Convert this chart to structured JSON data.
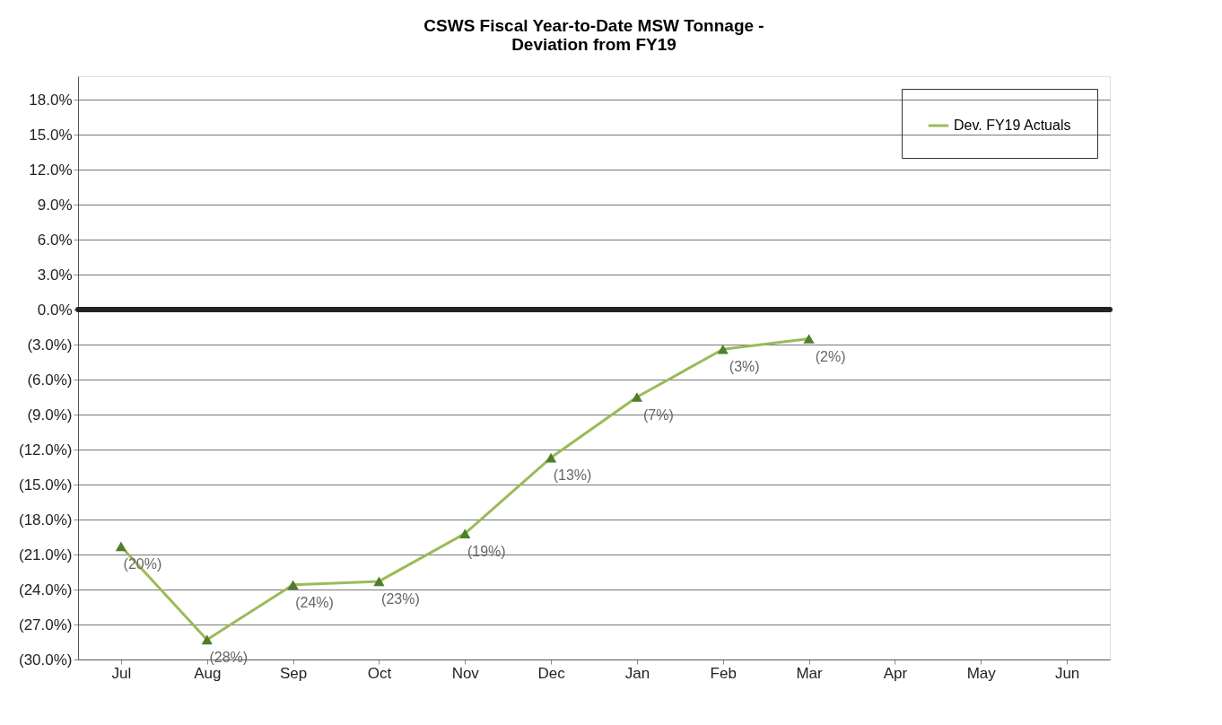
{
  "chart_data": {
    "type": "line",
    "title": "CSWS Fiscal Year-to-Date MSW Tonnage -\nDeviation from FY19",
    "categories": [
      "Jul",
      "Aug",
      "Sep",
      "Oct",
      "Nov",
      "Dec",
      "Jan",
      "Feb",
      "Mar",
      "Apr",
      "May",
      "Jun"
    ],
    "series": [
      {
        "name": "Dev. FY19 Actuals",
        "color": "#9bbb59",
        "values": [
          -20.3,
          -28.3,
          -23.6,
          -23.3,
          -19.2,
          -12.7,
          -7.5,
          -3.4,
          -2.5,
          null,
          null,
          null
        ],
        "value_labels": [
          "(20%)",
          "(28%)",
          "(24%)",
          "(23%)",
          "(19%)",
          "(13%)",
          "(7%)",
          "(3%)",
          "(2%)",
          null,
          null,
          null
        ]
      }
    ],
    "ylim": [
      -30,
      20
    ],
    "yticks": [
      {
        "value": -30,
        "label": "(30.0%)"
      },
      {
        "value": -27,
        "label": "(27.0%)"
      },
      {
        "value": -24,
        "label": "(24.0%)"
      },
      {
        "value": -21,
        "label": "(21.0%)"
      },
      {
        "value": -18,
        "label": "(18.0%)"
      },
      {
        "value": -15,
        "label": "(15.0%)"
      },
      {
        "value": -12,
        "label": "(12.0%)"
      },
      {
        "value": -9,
        "label": "(9.0%)"
      },
      {
        "value": -6,
        "label": "(6.0%)"
      },
      {
        "value": -3,
        "label": "(3.0%)"
      },
      {
        "value": 0,
        "label": "0.0%"
      },
      {
        "value": 3,
        "label": "3.0%"
      },
      {
        "value": 6,
        "label": "6.0%"
      },
      {
        "value": 9,
        "label": "9.0%"
      },
      {
        "value": 12,
        "label": "12.0%"
      },
      {
        "value": 15,
        "label": "15.0%"
      },
      {
        "value": 18,
        "label": "18.0%"
      }
    ],
    "ref_lines": [
      {
        "axis": "y",
        "value": 0,
        "color": "#222222"
      }
    ],
    "grid": "y",
    "legend": "top right",
    "marker": "triangle",
    "line_style": "solid"
  }
}
